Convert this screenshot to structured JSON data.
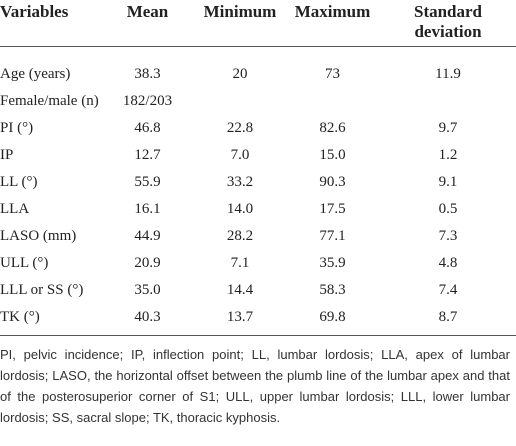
{
  "table": {
    "header": [
      "Variables",
      "Mean",
      "Minimum",
      "Maximum",
      "Standard deviation"
    ],
    "rows": [
      [
        "Age (years)",
        "38.3",
        "20",
        "73",
        "11.9"
      ],
      [
        "Female/male (n)",
        "182/203"
      ],
      [
        "PI (°)",
        "46.8",
        "22.8",
        "82.6",
        "9.7"
      ],
      [
        "IP",
        "12.7",
        "7.0",
        "15.0",
        "1.2"
      ],
      [
        "LL (°)",
        "55.9",
        "33.2",
        "90.3",
        "9.1"
      ],
      [
        "LLA",
        "16.1",
        "14.0",
        "17.5",
        "0.5"
      ],
      [
        "LASO (mm)",
        "44.9",
        "28.2",
        "77.1",
        "7.3"
      ],
      [
        "ULL (°)",
        "20.9",
        "7.1",
        "35.9",
        "4.8"
      ],
      [
        "LLL or SS (°)",
        "35.0",
        "14.4",
        "58.3",
        "7.4"
      ],
      [
        "TK (°)",
        "40.3",
        "13.7",
        "69.8",
        "8.7"
      ]
    ]
  },
  "footnote": "PI, pelvic incidence; IP, inflection point; LL, lumbar lordosis; LLA, apex of lumbar lordosis; LASO, the horizontal offset between the plumb line of the lumbar apex and that of the posterosuperior corner of S1; ULL, upper lumbar lordosis; LLL, lower lumbar lordosis; SS, sacral slope; TK, thoracic kyphosis."
}
